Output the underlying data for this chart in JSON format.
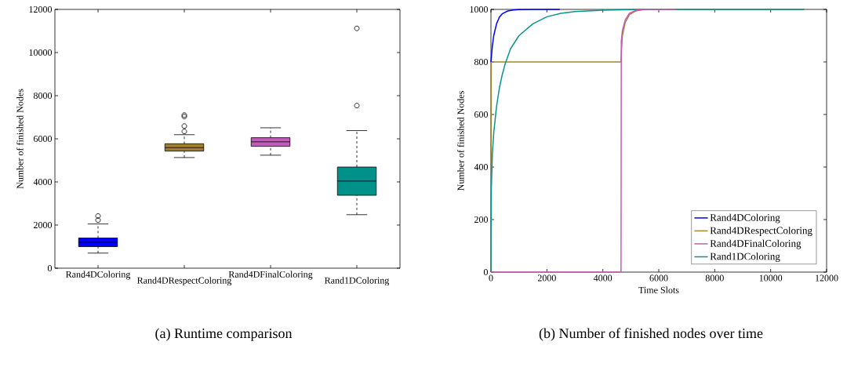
{
  "chart_data": [
    {
      "type": "box",
      "title": "(a) Runtime comparison",
      "ylabel": "Number of finished Nodes",
      "categories": [
        "Rand4DColoring",
        "Rand4DRespectColoring",
        "Rand4DFinalColoring",
        "Rand1DColoring"
      ],
      "colors": [
        "#0000ff",
        "#a08030",
        "#c55ab8",
        "#00918a"
      ],
      "boxes": [
        {
          "low": 700,
          "q1": 1000,
          "median": 1200,
          "q3": 1400,
          "high": 2050,
          "outliers": [
            2230,
            2420
          ]
        },
        {
          "low": 5130,
          "q1": 5430,
          "median": 5590,
          "q3": 5770,
          "high": 6190,
          "outliers": [
            6340,
            6590,
            7030,
            7100
          ]
        },
        {
          "low": 5240,
          "q1": 5650,
          "median": 5860,
          "q3": 6050,
          "high": 6510
        },
        {
          "low": 2480,
          "q1": 3380,
          "median": 4040,
          "q3": 4690,
          "high": 6380,
          "outliers": [
            7540,
            11120
          ]
        }
      ],
      "ylim": [
        0,
        12000
      ],
      "yticks": [
        0,
        2000,
        4000,
        6000,
        8000,
        10000,
        12000
      ]
    },
    {
      "type": "line",
      "title": "(b) Number of finished nodes over time",
      "xlabel": "Time Slots",
      "ylabel": "Number of finished Nodes",
      "xlim": [
        0,
        12000
      ],
      "xticks": [
        0,
        2000,
        4000,
        6000,
        8000,
        10000,
        12000
      ],
      "ylim": [
        0,
        1000
      ],
      "yticks": [
        0,
        200,
        400,
        600,
        800,
        1000
      ],
      "legend": "bottom right",
      "series": [
        {
          "name": "Rand4DColoring",
          "color": "#0000ff",
          "x": [
            0,
            50,
            100,
            200,
            300,
            400,
            600,
            800,
            1000,
            1500,
            2460
          ],
          "values": [
            800,
            860,
            900,
            945,
            970,
            983,
            994,
            998,
            999,
            1000,
            1000
          ]
        },
        {
          "name": "Rand4DRespectColoring",
          "color": "#a5832f",
          "x": [
            0,
            10,
            4650,
            4670,
            4700,
            4800,
            4950,
            5200,
            5500,
            11200
          ],
          "values": [
            0,
            800,
            800,
            850,
            900,
            950,
            980,
            995,
            1000,
            1000
          ]
        },
        {
          "name": "Rand4DFinalColoring",
          "color": "#c65bb5",
          "x": [
            0,
            4650,
            4660,
            4700,
            4800,
            4950,
            5200,
            5500,
            6600
          ],
          "values": [
            0,
            0,
            880,
            920,
            960,
            985,
            997,
            1000,
            1000
          ]
        },
        {
          "name": "Rand1DColoring",
          "color": "#0a9490",
          "x": [
            0,
            10,
            50,
            100,
            200,
            300,
            400,
            500,
            700,
            1000,
            1500,
            2000,
            2500,
            3000,
            4000,
            5000,
            6000,
            11200
          ],
          "values": [
            0,
            300,
            450,
            530,
            630,
            700,
            750,
            790,
            850,
            900,
            945,
            972,
            985,
            992,
            997,
            999,
            1000,
            1000
          ]
        }
      ]
    }
  ]
}
